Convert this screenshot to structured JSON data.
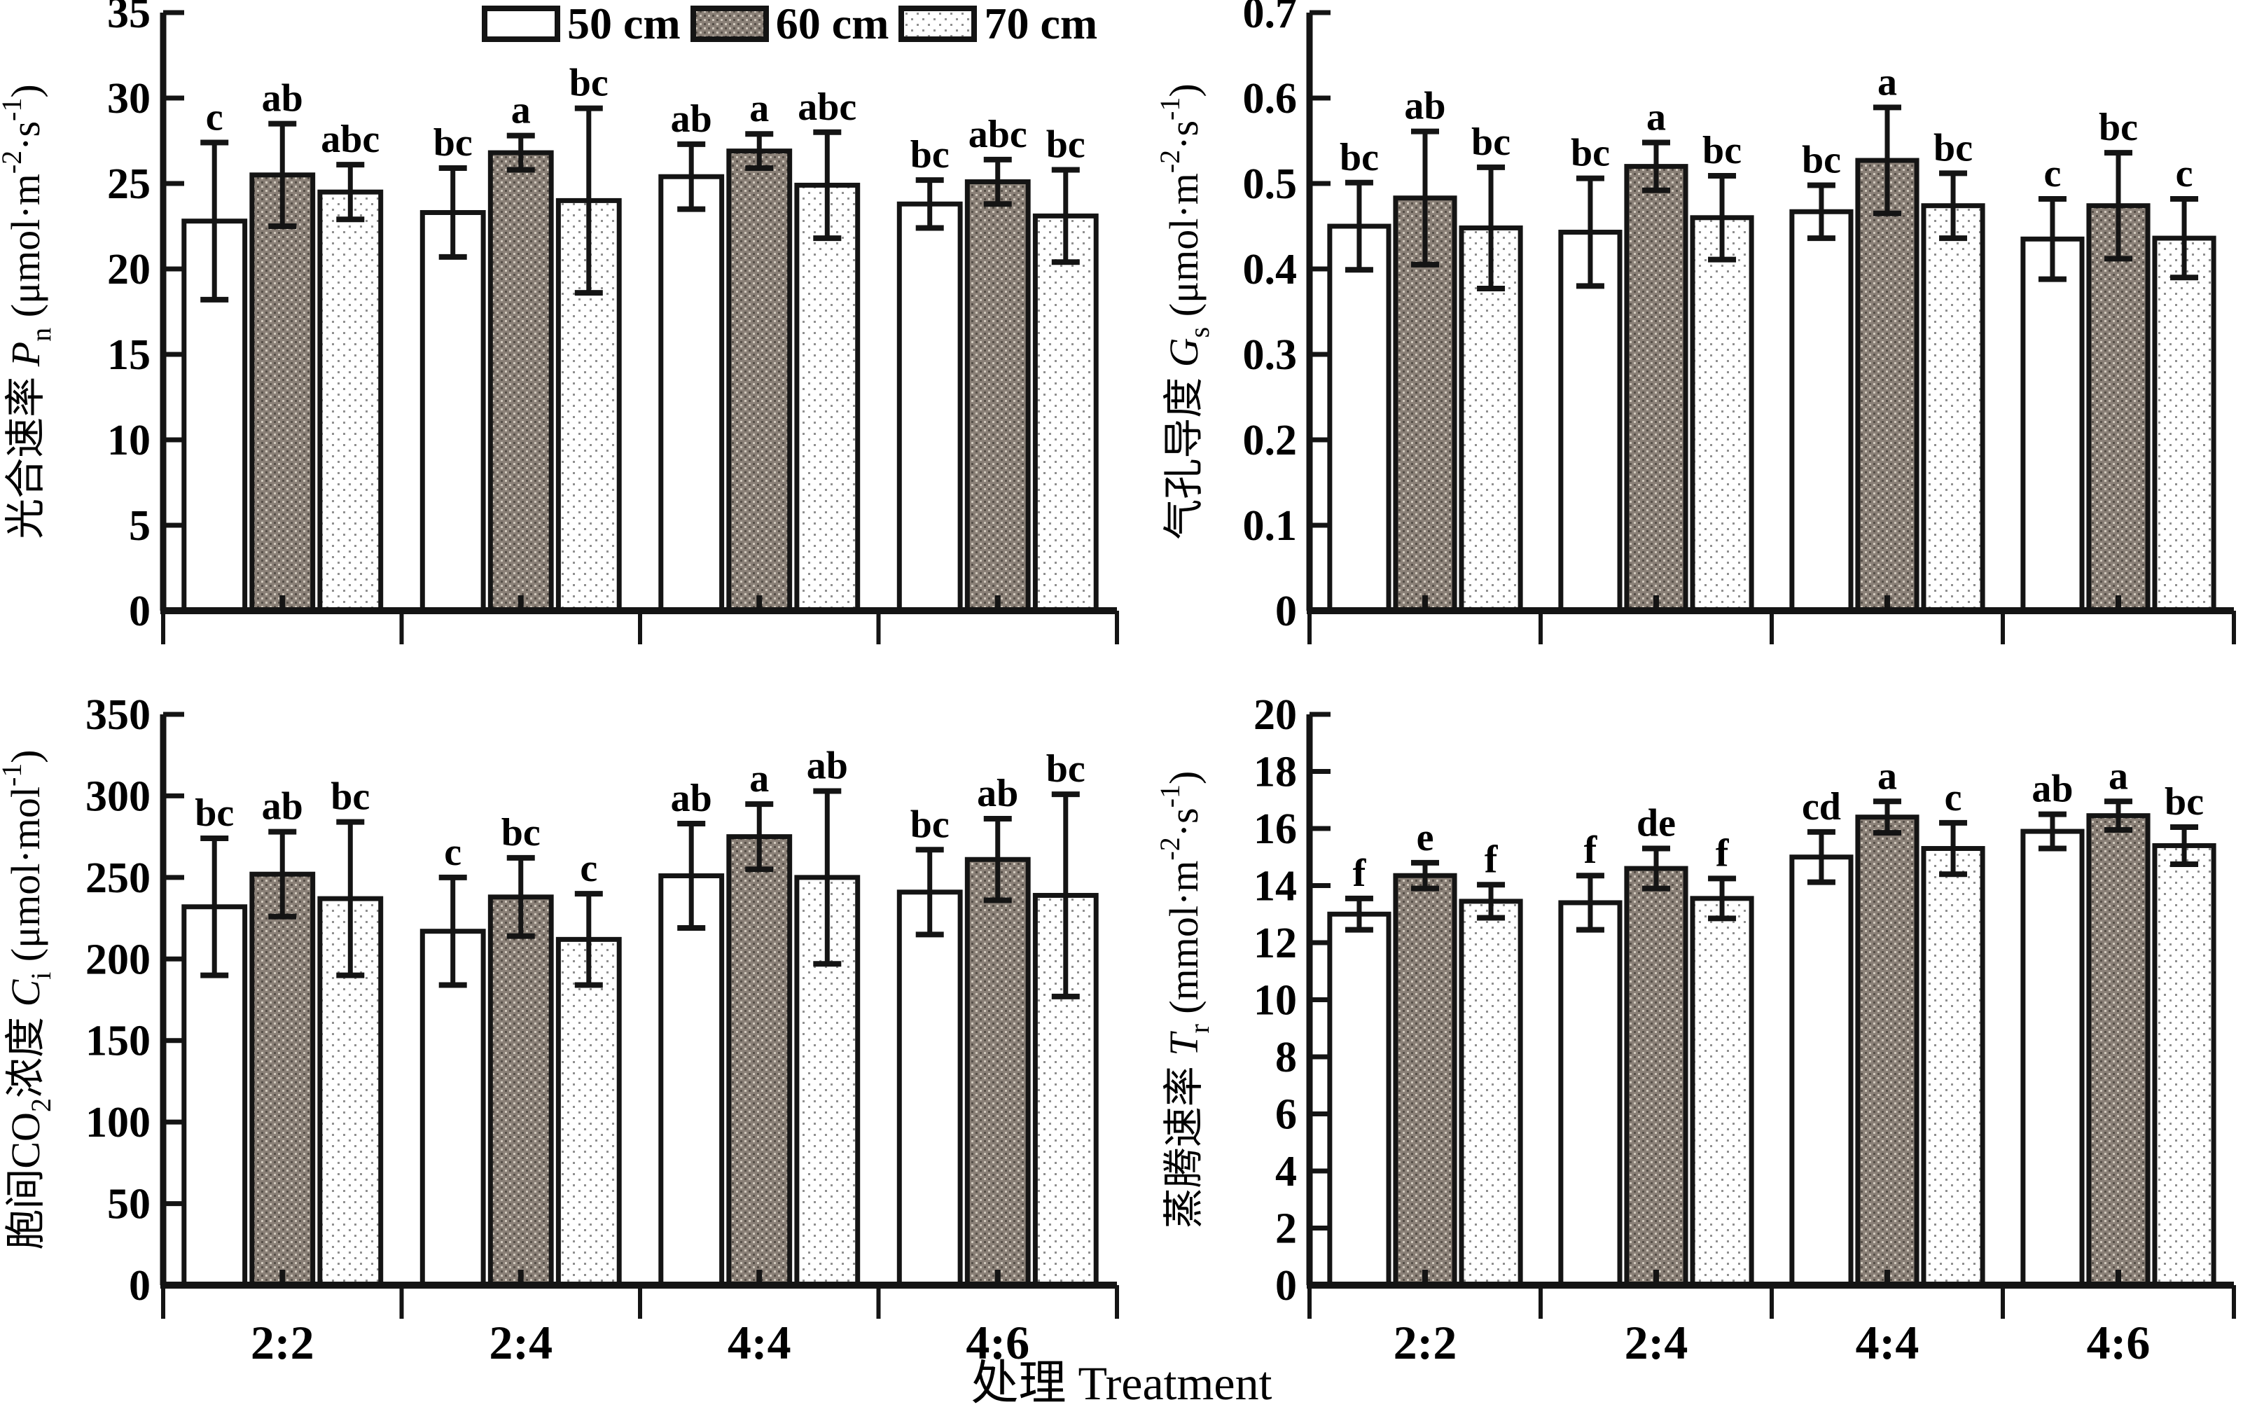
{
  "figure": {
    "x_axis_label": "处理 Treatment",
    "categories": [
      "2:2",
      "2:4",
      "4:4",
      "4:6"
    ],
    "legend": {
      "items": [
        {
          "label": "50 cm",
          "style": "white"
        },
        {
          "label": "60 cm",
          "style": "brown-weave"
        },
        {
          "label": "70 cm",
          "style": "light-dotted"
        }
      ]
    },
    "colors": {
      "axis": "#141414",
      "bar_border": "#141414",
      "bar_white": "#ffffff",
      "brown_base": "#8a8077",
      "brown_speck_light": "#cfc7bb",
      "brown_speck_dark": "#564f48",
      "dot_base": "#ffffff",
      "dot_color": "#8f8f8f",
      "text": "#000000"
    }
  },
  "chart_data": [
    {
      "id": "pn",
      "type": "bar",
      "panel": "top-left",
      "ylabel_plain": "光合速率 Pn (μmol·m-2·s-1)",
      "ylabel_parts": [
        {
          "t": "光合速率 "
        },
        {
          "t": "P",
          "i": 1
        },
        {
          "t": "n",
          "sub": 1
        },
        {
          "t": " (μmol·m"
        },
        {
          "t": "-2",
          "sup": 1
        },
        {
          "t": "·s"
        },
        {
          "t": "-1",
          "sup": 1
        },
        {
          "t": ")"
        }
      ],
      "ylim": [
        0,
        35
      ],
      "ytick_labels": [
        "0",
        "5",
        "10",
        "15",
        "20",
        "25",
        "30",
        "35"
      ],
      "categories": [
        "2:2",
        "2:4",
        "4:4",
        "4:6"
      ],
      "show_category_labels": false,
      "series": [
        {
          "name": "50 cm",
          "values": [
            22.8,
            23.3,
            25.4,
            23.8
          ],
          "errors": [
            4.6,
            2.6,
            1.9,
            1.4
          ],
          "letters": [
            "c",
            "bc",
            "ab",
            "bc"
          ]
        },
        {
          "name": "60 cm",
          "values": [
            25.5,
            26.8,
            26.9,
            25.1
          ],
          "errors": [
            3.0,
            1.0,
            1.0,
            1.3
          ],
          "letters": [
            "ab",
            "a",
            "a",
            "abc"
          ]
        },
        {
          "name": "70 cm",
          "values": [
            24.5,
            24.0,
            24.9,
            23.1
          ],
          "errors": [
            1.6,
            5.4,
            3.1,
            2.7
          ],
          "letters": [
            "abc",
            "bc",
            "abc",
            "bc"
          ]
        }
      ]
    },
    {
      "id": "gs",
      "type": "bar",
      "panel": "top-right",
      "ylabel_plain": "气孔导度 Gs (μmol·m-2·s-1)",
      "ylabel_parts": [
        {
          "t": "气孔导度 "
        },
        {
          "t": "G",
          "i": 1
        },
        {
          "t": "s",
          "sub": 1
        },
        {
          "t": " (μmol·m"
        },
        {
          "t": "-2",
          "sup": 1
        },
        {
          "t": "·s"
        },
        {
          "t": "-1",
          "sup": 1
        },
        {
          "t": ")"
        }
      ],
      "ylim": [
        0,
        0.7
      ],
      "ytick_labels": [
        "0",
        "0.1",
        "0.2",
        "0.3",
        "0.4",
        "0.5",
        "0.6",
        "0.7"
      ],
      "categories": [
        "2:2",
        "2:4",
        "4:4",
        "4:6"
      ],
      "show_category_labels": false,
      "series": [
        {
          "name": "50 cm",
          "values": [
            0.45,
            0.443,
            0.467,
            0.435
          ],
          "errors": [
            0.051,
            0.063,
            0.031,
            0.047
          ],
          "letters": [
            "bc",
            "bc",
            "bc",
            "c"
          ]
        },
        {
          "name": "60 cm",
          "values": [
            0.483,
            0.52,
            0.527,
            0.474
          ],
          "errors": [
            0.078,
            0.028,
            0.062,
            0.062
          ],
          "letters": [
            "ab",
            "a",
            "a",
            "bc"
          ]
        },
        {
          "name": "70 cm",
          "values": [
            0.448,
            0.46,
            0.474,
            0.436
          ],
          "errors": [
            0.071,
            0.049,
            0.038,
            0.046
          ],
          "letters": [
            "bc",
            "bc",
            "bc",
            "c"
          ]
        }
      ]
    },
    {
      "id": "ci",
      "type": "bar",
      "panel": "bottom-left",
      "ylabel_plain": "胞间CO2浓度 Ci (μmol·mol-1)",
      "ylabel_parts": [
        {
          "t": "胞间CO"
        },
        {
          "t": "2",
          "sub": 1
        },
        {
          "t": "浓度 "
        },
        {
          "t": "C",
          "i": 1
        },
        {
          "t": "i",
          "sub": 1
        },
        {
          "t": " (μmol·mol"
        },
        {
          "t": "-1",
          "sup": 1
        },
        {
          "t": ")"
        }
      ],
      "ylim": [
        0,
        350
      ],
      "ytick_labels": [
        "0",
        "50",
        "100",
        "150",
        "200",
        "250",
        "300",
        "350"
      ],
      "categories": [
        "2:2",
        "2:4",
        "4:4",
        "4:6"
      ],
      "show_category_labels": true,
      "series": [
        {
          "name": "50 cm",
          "values": [
            232,
            217,
            251,
            241
          ],
          "errors": [
            42,
            33,
            32,
            26
          ],
          "letters": [
            "bc",
            "c",
            "ab",
            "bc"
          ]
        },
        {
          "name": "60 cm",
          "values": [
            252,
            238,
            275,
            261
          ],
          "errors": [
            26,
            24,
            20,
            25
          ],
          "letters": [
            "ab",
            "bc",
            "a",
            "ab"
          ]
        },
        {
          "name": "70 cm",
          "values": [
            237,
            212,
            250,
            239
          ],
          "errors": [
            47,
            28,
            53,
            62
          ],
          "letters": [
            "bc",
            "c",
            "ab",
            "bc"
          ]
        }
      ]
    },
    {
      "id": "tr",
      "type": "bar",
      "panel": "bottom-right",
      "ylabel_plain": "蒸腾速率 Tr (mmol·m-2·s-1)",
      "ylabel_parts": [
        {
          "t": "蒸腾速率 "
        },
        {
          "t": "T",
          "i": 1
        },
        {
          "t": "r",
          "sub": 1
        },
        {
          "t": " (mmol·m"
        },
        {
          "t": "-2",
          "sup": 1
        },
        {
          "t": "·s"
        },
        {
          "t": "-1",
          "sup": 1
        },
        {
          "t": ")"
        }
      ],
      "ylim": [
        0,
        20
      ],
      "ytick_labels": [
        "0",
        "2",
        "4",
        "6",
        "8",
        "10",
        "12",
        "14",
        "16",
        "18",
        "20"
      ],
      "categories": [
        "2:2",
        "2:4",
        "4:4",
        "4:6"
      ],
      "show_category_labels": true,
      "series": [
        {
          "name": "50 cm",
          "values": [
            13.0,
            13.4,
            15.0,
            15.9
          ],
          "errors": [
            0.55,
            0.95,
            0.88,
            0.6
          ],
          "letters": [
            "f",
            "f",
            "cd",
            "ab"
          ]
        },
        {
          "name": "60 cm",
          "values": [
            14.35,
            14.6,
            16.4,
            16.45
          ],
          "errors": [
            0.45,
            0.7,
            0.55,
            0.5
          ],
          "letters": [
            "e",
            "de",
            "a",
            "a"
          ]
        },
        {
          "name": "70 cm",
          "values": [
            13.45,
            13.55,
            15.3,
            15.4
          ],
          "errors": [
            0.58,
            0.7,
            0.9,
            0.65
          ],
          "letters": [
            "f",
            "f",
            "c",
            "bc"
          ]
        }
      ]
    }
  ]
}
